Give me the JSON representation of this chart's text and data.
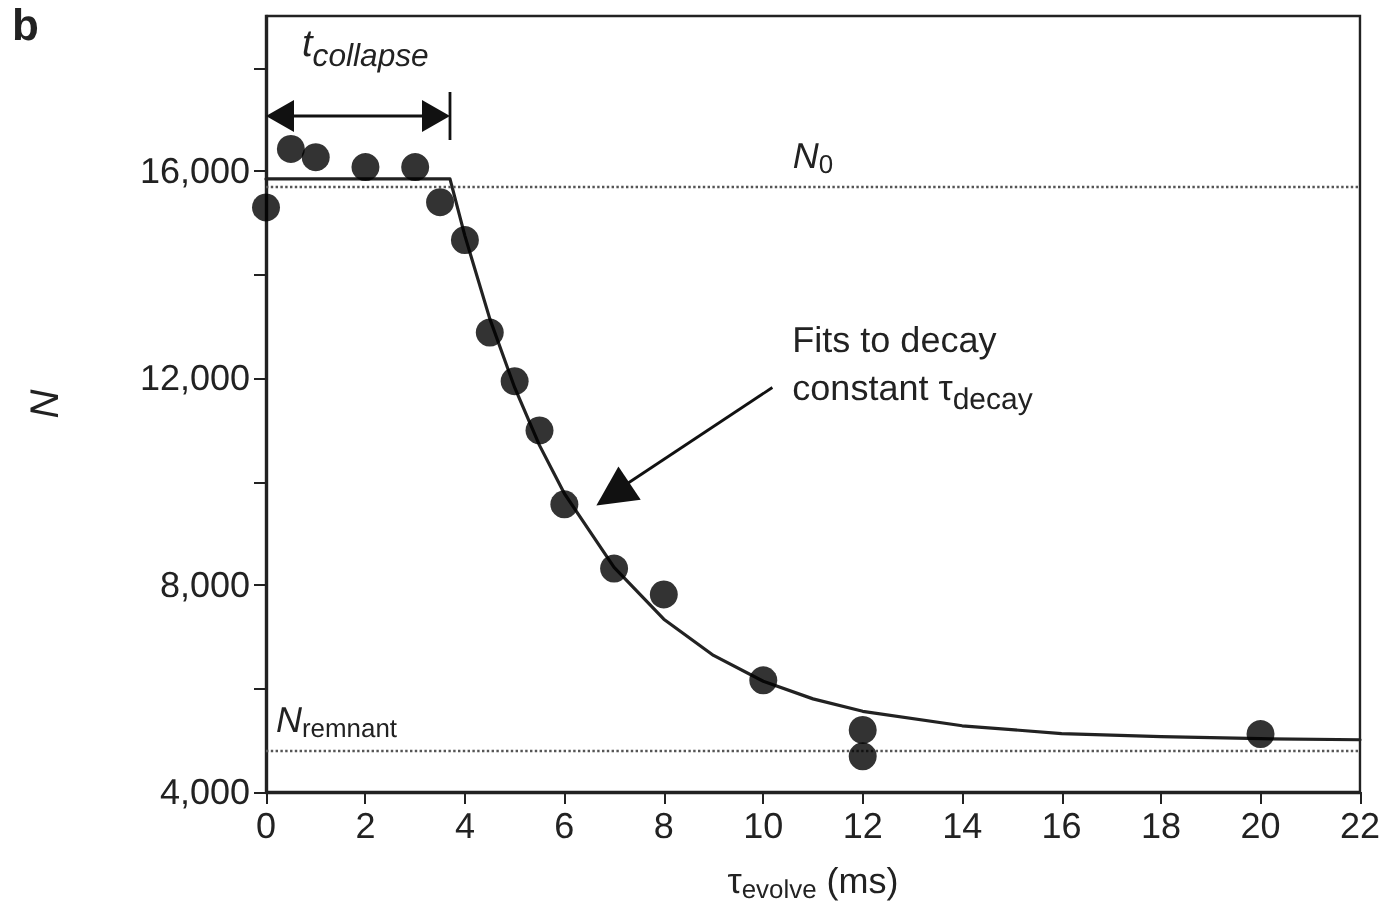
{
  "chart_data": {
    "type": "scatter",
    "title": "b",
    "xlabel": "τ$_{evolve}$ (ms)",
    "ylabel": "N",
    "xlim": [
      0,
      22
    ],
    "xticks": [
      0,
      2,
      4,
      6,
      8,
      10,
      12,
      14,
      16,
      18,
      20,
      22
    ],
    "ylim": [
      4000,
      19000
    ],
    "yticks": [
      {
        "value": 4000,
        "label": "4,000"
      },
      {
        "value": 6000,
        "label": null
      },
      {
        "value": 8000,
        "label": "8,000"
      },
      {
        "value": 10000,
        "label": null
      },
      {
        "value": 12000,
        "label": "12,000"
      },
      {
        "value": 14000,
        "label": null
      },
      {
        "value": 16000,
        "label": "16,000"
      },
      {
        "value": 18000,
        "label": null
      }
    ],
    "grid": false,
    "series": [
      {
        "marker": "circle",
        "color": "#000000",
        "x": [
          0,
          0.5,
          1,
          2,
          3,
          3.5,
          4,
          4.5,
          5,
          5.5,
          6,
          7,
          8,
          10,
          12,
          12,
          20
        ],
        "values": [
          15300,
          16430,
          16270,
          16080,
          16080,
          15400,
          14670,
          12880,
          11940,
          10990,
          9560,
          8320,
          7820,
          6160,
          5200,
          4690,
          5120
        ]
      },
      {
        "type": "line",
        "color": "#222222",
        "line_style": "solid",
        "x": [
          0,
          3.7,
          4,
          4.5,
          5,
          5.5,
          6,
          7,
          8,
          9,
          10,
          11,
          12,
          14,
          16,
          18,
          20,
          22
        ],
        "values": [
          15850,
          15850,
          14750,
          13150,
          11820,
          10700,
          9770,
          8340,
          7340,
          6640,
          6140,
          5800,
          5560,
          5280,
          5130,
          5070,
          5030,
          5010
        ]
      }
    ],
    "ref_lines": [
      {
        "axis": "y",
        "value": 15700,
        "label": "N$_{0}$",
        "line_style": "dotted",
        "color": "#555555"
      },
      {
        "axis": "y",
        "value": 4800,
        "label": "N$_{remnant}$",
        "line_style": "dotted",
        "color": "#555555"
      }
    ],
    "annotations": [
      "t$_{collapse}$",
      "Fits to decay constant τ$_{decay}$"
    ]
  }
}
